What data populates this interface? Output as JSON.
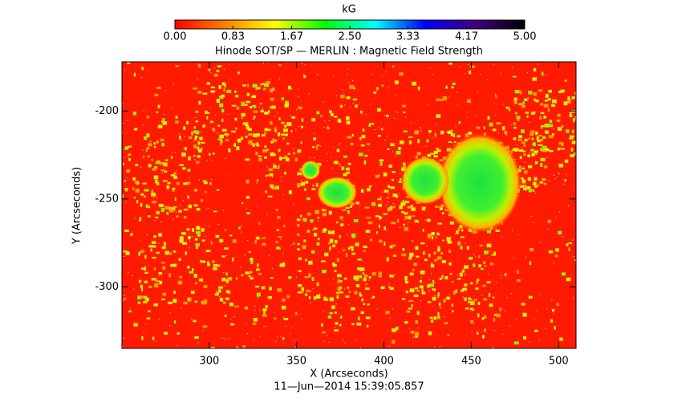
{
  "chart_data": {
    "type": "image",
    "title": "Hinode SOT/SP — MERLIN : Magnetic Field Strength",
    "colorbar": {
      "title": "kG",
      "lim": [
        0,
        5
      ],
      "ticks": [
        {
          "value": 0,
          "label": "0.00"
        },
        0.83,
        1.67,
        {
          "value": 2.5,
          "label": "2.50"
        },
        3.33,
        4.17,
        {
          "value": 5,
          "label": "5.00"
        }
      ],
      "colors": [
        "#ff0000",
        "#ff8000",
        "#ffff00",
        "#00ff00",
        "#00ffff",
        "#0000ff",
        "#400080",
        "#000000"
      ]
    },
    "xlabel": "X (Arcseconds)",
    "ylabel": "Y (Arcseconds)",
    "xlim": [
      250,
      510
    ],
    "ylim": [
      -335,
      -172
    ],
    "xticks": [
      300,
      350,
      400,
      450,
      500
    ],
    "yticks": [
      -200,
      -250,
      -300
    ],
    "annotation": "11—Jun—2014 15:39:05.857"
  }
}
